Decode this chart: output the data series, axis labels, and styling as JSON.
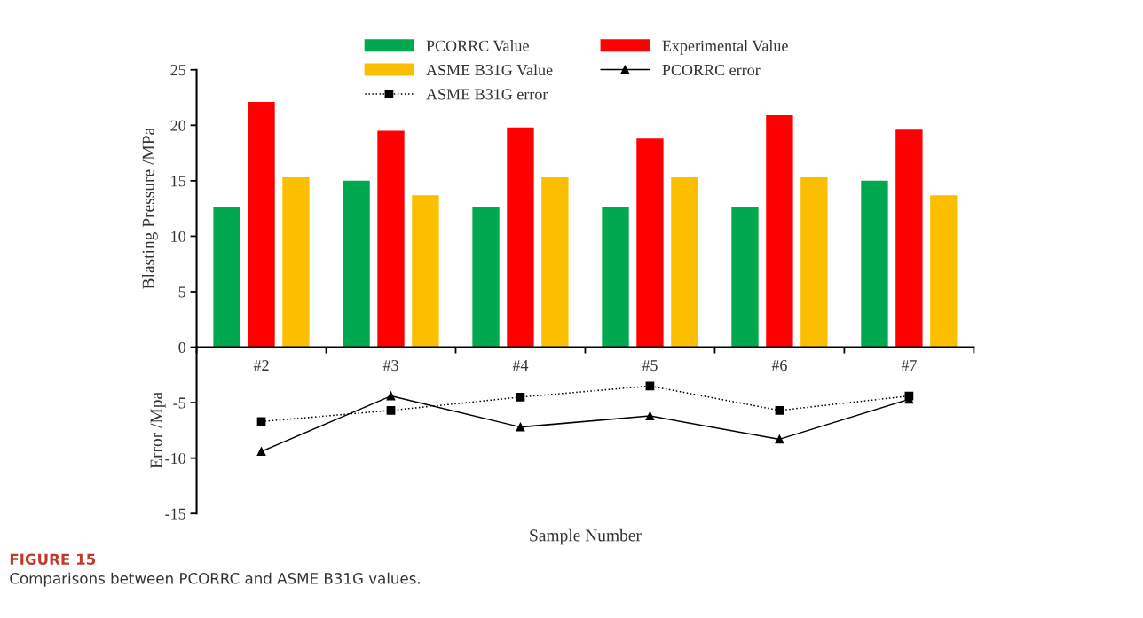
{
  "chart_data": {
    "type": "bar",
    "categories": [
      "#2",
      "#3",
      "#4",
      "#5",
      "#6",
      "#7"
    ],
    "series": [
      {
        "name": "PCORRC Value",
        "color": "#00a84f",
        "values": [
          12.6,
          15.0,
          12.6,
          12.6,
          12.6,
          15.0
        ]
      },
      {
        "name": "Experimental Value",
        "color": "#ff0000",
        "values": [
          22.1,
          19.5,
          19.8,
          18.8,
          20.9,
          19.6
        ]
      },
      {
        "name": "ASME B31G Value",
        "color": "#fbbf00",
        "values": [
          15.3,
          13.7,
          15.3,
          15.3,
          15.3,
          13.7
        ]
      },
      {
        "name": "PCORRC error",
        "type": "line",
        "color": "#000000",
        "marker": "triangle",
        "line_style": "solid",
        "values": [
          -9.4,
          -4.4,
          -7.2,
          -6.2,
          -8.3,
          -4.7
        ]
      },
      {
        "name": "ASME B31G error",
        "type": "line",
        "color": "#000000",
        "marker": "square",
        "line_style": "dotted",
        "values": [
          -6.7,
          -5.7,
          -4.5,
          -3.5,
          -5.7,
          -4.4
        ]
      }
    ],
    "ylim": [
      -15,
      25
    ],
    "yticks": [
      {
        "value": -15,
        "label": "-15"
      },
      {
        "value": -10,
        "label": "-10"
      },
      {
        "value": -5,
        "label": "-5"
      },
      0,
      5,
      10,
      15,
      20,
      25
    ],
    "ylabel": "Blasting Pressure /MPa",
    "xlabel": "Sample Number",
    "legend": "top right",
    "grid": false,
    "annotations": [
      "Error /Mpa",
      "FIGURE 15",
      "Comparisons between PCORRC and ASME B31G values."
    ]
  }
}
